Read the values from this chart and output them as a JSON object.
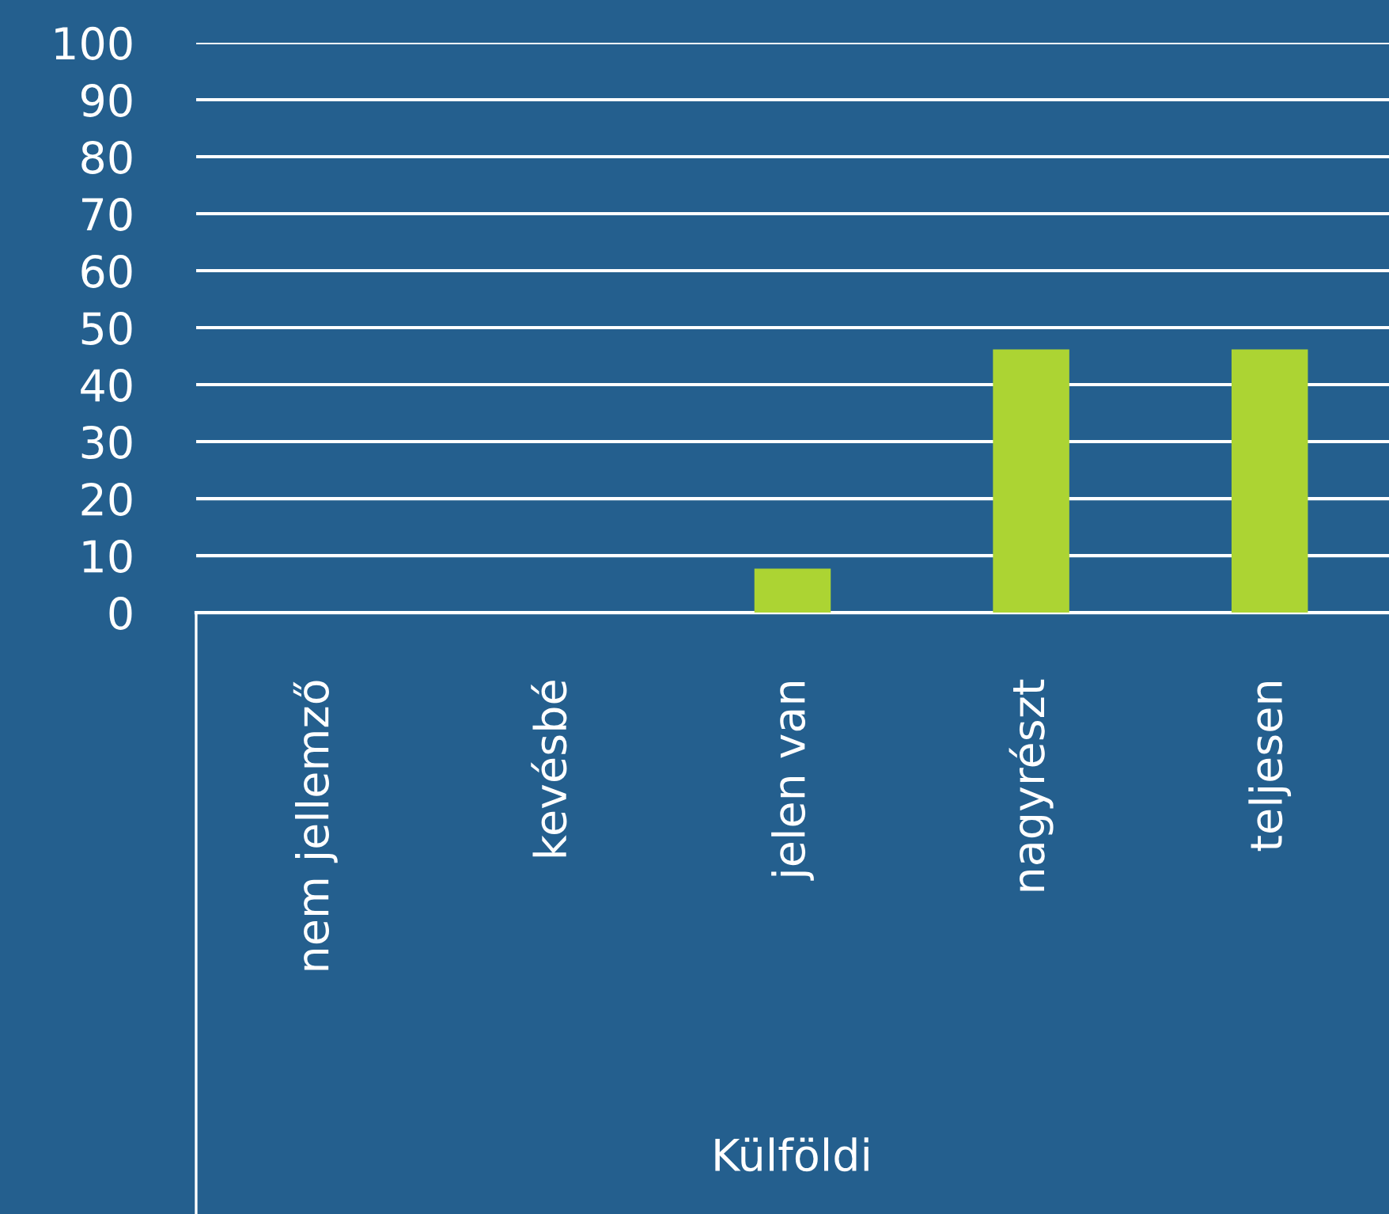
{
  "chart_data": {
    "type": "bar",
    "xlabel": "Külföldi",
    "categories": [
      "nem jellemző",
      "kevésbé",
      "jelen van",
      "nagyrészt",
      "teljesen"
    ],
    "values": [
      0,
      0,
      7.7,
      46.2,
      46.2
    ],
    "color": "#acd433",
    "ylim": [
      0,
      100
    ],
    "yticks": [
      0,
      10,
      20,
      30,
      40,
      50,
      60,
      70,
      80,
      90,
      100
    ],
    "grid": "y",
    "legend": false
  }
}
